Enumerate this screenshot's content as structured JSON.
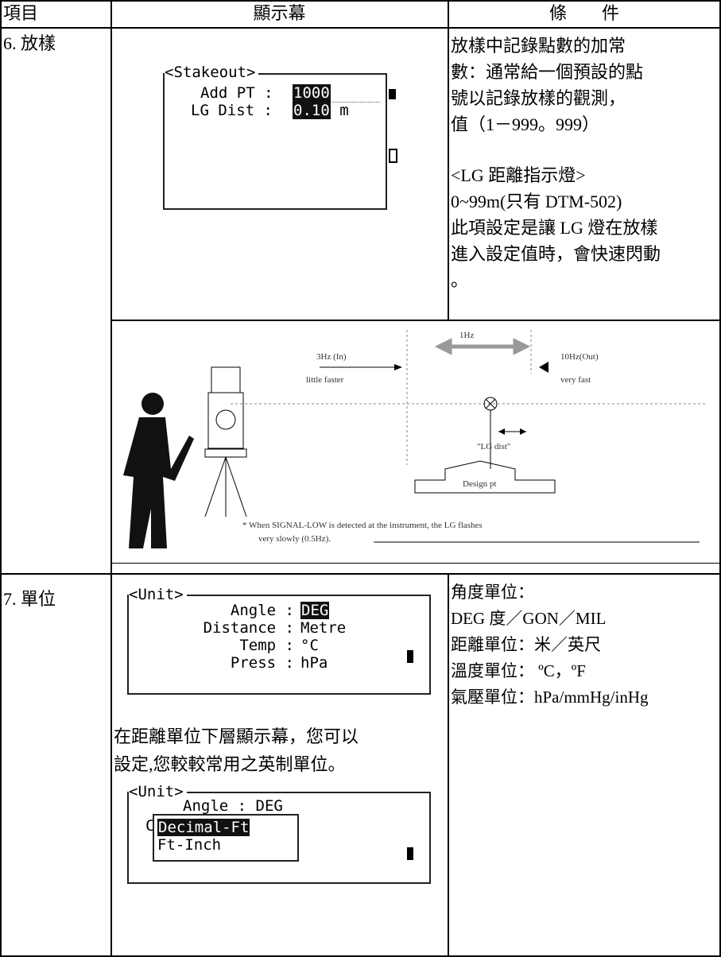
{
  "header": {
    "columns": [
      "項目",
      "顯示幕",
      "條　　件"
    ]
  },
  "rows": [
    {
      "item": "6. 放樣",
      "screen": {
        "title": "<Stakeout>",
        "lines": [
          {
            "label": "Add PT :",
            "value": "1000"
          },
          {
            "label": "LG Dist :",
            "value": "0.10",
            "unit": "m"
          }
        ]
      },
      "conditions": [
        "放樣中記錄點數的加常",
        "數：通常給一個預設的點",
        "號以記錄放樣的觀測，",
        "值（1－999。999）",
        "<LG 距離指示燈>",
        "0~99m(只有 DTM-502)",
        "此項設定是讓 LG 燈在放樣",
        "進入設定值時，會快速閃動",
        "。"
      ],
      "diagram": {
        "frequency": "1Hz",
        "in_label": "3Hz (In)",
        "in_desc": "little faster",
        "out_label": "10Hz(Out)",
        "out_desc": "very fast",
        "lg_dist": "\"LG dist\"",
        "design_pt": "Design pt",
        "footnote": [
          "* When SIGNAL-LOW is detected at the instrument, the LG flashes",
          "very slowly (0.5Hz)."
        ]
      }
    },
    {
      "item": "7. 單位",
      "screen": {
        "title": "<Unit>",
        "lines": [
          {
            "label": "Angle :",
            "value": "DEG"
          },
          {
            "label": "Distance :",
            "value": "Metre"
          },
          {
            "label": "Temp :",
            "value": "°C"
          },
          {
            "label": "Press :",
            "value": "hPa"
          }
        ]
      },
      "note": [
        "在距離單位下層顯示幕，您可以",
        "設定,您較較常用之英制單位。"
      ],
      "submenu": {
        "title": "<Unit>",
        "line": "Angle : DEG",
        "hidden": "C",
        "options": [
          "Decimal-Ft",
          "Ft-Inch"
        ]
      },
      "conditions": [
        "角度單位：",
        "DEG 度／GON／MIL",
        "距離單位：米／英尺",
        "溫度單位： ºC，ºF",
        "氣壓單位：hPa/mmHg/inHg"
      ]
    }
  ]
}
